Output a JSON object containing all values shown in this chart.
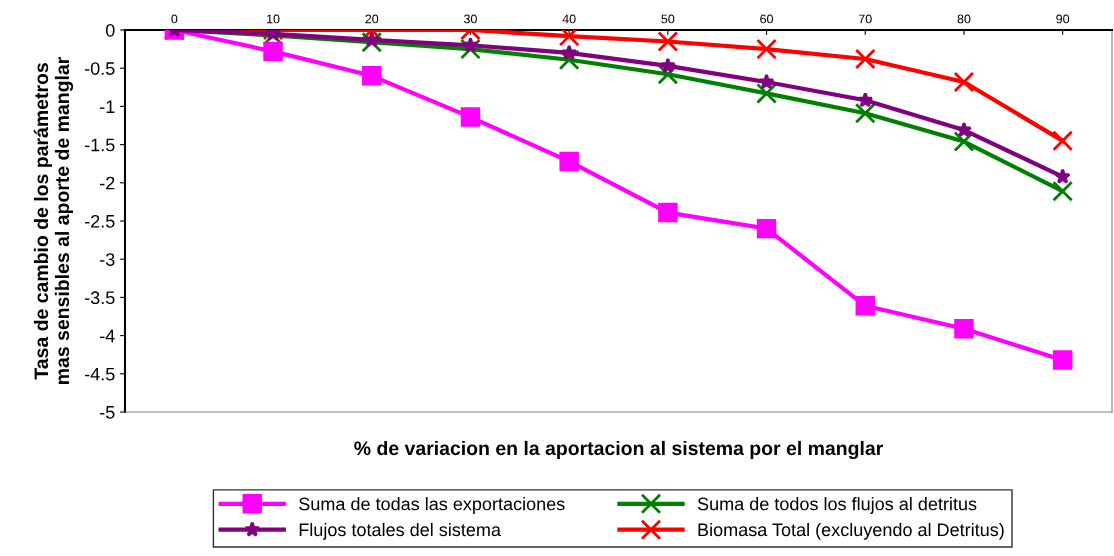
{
  "chart_data": {
    "type": "line",
    "xlabel": "% de variacion en la aportacion al sistema por el manglar",
    "ylabel": "Tasa de cambio de los parámetros\nmas sensibles al aporte de manglar",
    "categories": [
      "0",
      "10",
      "20",
      "30",
      "40",
      "50",
      "60",
      "70",
      "80",
      "90"
    ],
    "ylim": [
      -5,
      0
    ],
    "yticks": [
      -5,
      -4.5,
      -4,
      -3.5,
      -3,
      -2.5,
      -2,
      -1.5,
      -1,
      -0.5,
      0
    ],
    "grid": false,
    "legend": "bottom",
    "line_style": "solid",
    "series": [
      {
        "name": "Suma de todas las exportaciones",
        "color": "#ff00ff",
        "marker": "square",
        "values": [
          0,
          -0.28,
          -0.6,
          -1.14,
          -1.72,
          -2.39,
          -2.6,
          -3.61,
          -3.91,
          -4.32
        ]
      },
      {
        "name": "Flujos totales del sistema",
        "color": "#800080",
        "marker": "star",
        "values": [
          0,
          -0.05,
          -0.13,
          -0.2,
          -0.3,
          -0.47,
          -0.68,
          -0.92,
          -1.31,
          -1.92
        ]
      },
      {
        "name": "Suma de todos los flujos al detritus",
        "color": "#008000",
        "marker": "cross",
        "values": [
          0,
          -0.07,
          -0.16,
          -0.25,
          -0.39,
          -0.58,
          -0.83,
          -1.09,
          -1.46,
          -2.11
        ]
      },
      {
        "name": "Biomasa Total (excluyendo al Detritus)",
        "color": "#ff0000",
        "marker": "cross",
        "values": [
          0,
          0,
          0,
          0,
          -0.08,
          -0.15,
          -0.25,
          -0.38,
          -0.68,
          -1.45
        ]
      }
    ]
  }
}
